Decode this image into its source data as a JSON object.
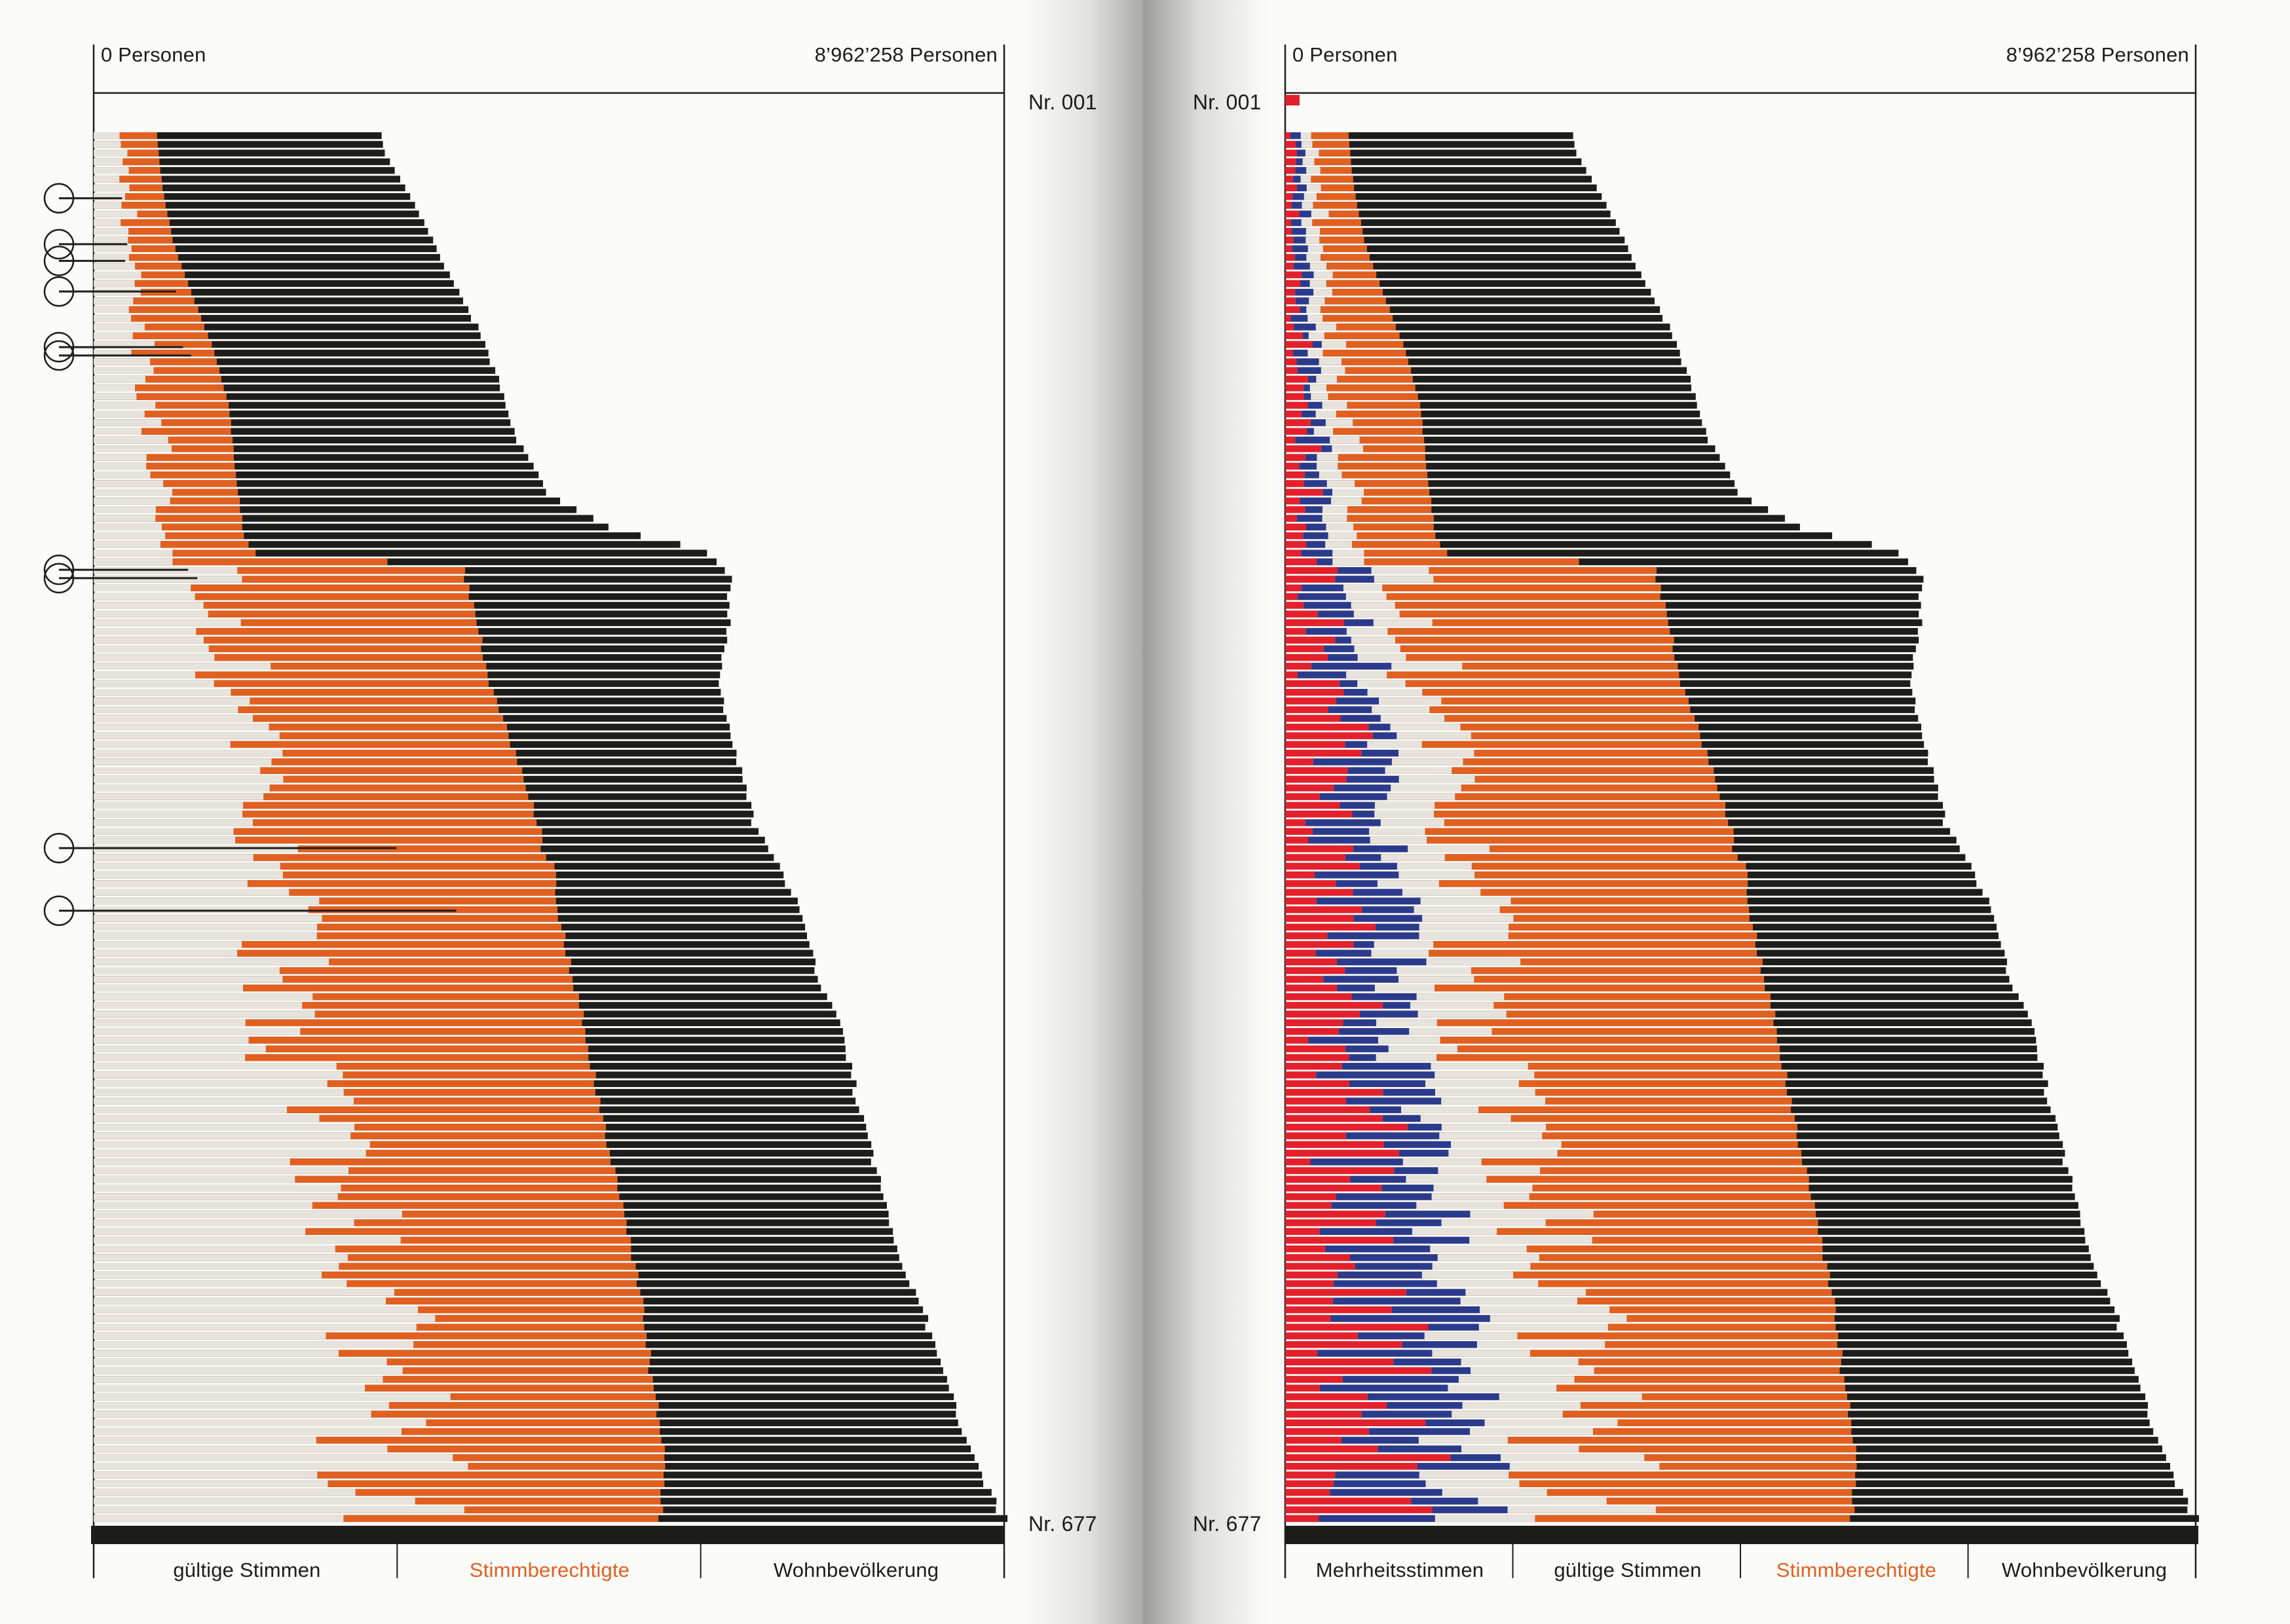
{
  "colors": {
    "valid": "#e6e3dd",
    "eligible": "#e2601f",
    "population": "#1d1d1b",
    "yes": "#e3202b",
    "no": "#2b3b8c",
    "paper": "#fbfbfa",
    "axis": "#1d1d1b"
  },
  "left": {
    "axis_min_label": "0 Personen",
    "axis_max_label": "8’962’258 Personen",
    "first_label": "Nr. 001",
    "last_label": "Nr. 677",
    "footer": [
      "gültige Stimmen",
      "Stimmberechtigte",
      "Wohnbevölkerung"
    ]
  },
  "right": {
    "axis_min_label": "0 Personen",
    "axis_max_label": "8’962’258 Personen",
    "first_label": "Nr. 001",
    "last_label": "Nr. 677",
    "footer": [
      "Mehrheitsstimmen",
      "gültige Stimmen",
      "Stimmberechtigte",
      "Wohnbevölkerung"
    ]
  },
  "chart_data": [
    {
      "type": "bar",
      "orientation": "horizontal",
      "x_range": [
        0,
        8962258
      ],
      "x_unit": "Personen",
      "record_range": [
        "Nr. 001",
        "Nr. 677"
      ],
      "series": [
        {
          "name": "gültige Stimmen",
          "color": "#e6e3dd"
        },
        {
          "name": "Stimmberechtigte",
          "color": "#e2601f"
        },
        {
          "name": "Wohnbevölkerung",
          "color": "#1d1d1b"
        }
      ],
      "population_profile": [
        [
          0.0,
          2846000
        ],
        [
          0.01,
          2840000
        ],
        [
          0.06,
          3230000
        ],
        [
          0.1,
          3490000
        ],
        [
          0.14,
          3785000
        ],
        [
          0.18,
          4000000
        ],
        [
          0.22,
          4170000
        ],
        [
          0.26,
          4480000
        ],
        [
          0.285,
          5120000
        ],
        [
          0.3,
          6030000
        ],
        [
          0.32,
          6260000
        ],
        [
          0.35,
          6250000
        ],
        [
          0.4,
          6150000
        ],
        [
          0.45,
          6330000
        ],
        [
          0.5,
          6510000
        ],
        [
          0.55,
          6900000
        ],
        [
          0.6,
          7090000
        ],
        [
          0.65,
          7380000
        ],
        [
          0.7,
          7520000
        ],
        [
          0.75,
          7710000
        ],
        [
          0.8,
          7890000
        ],
        [
          0.85,
          8160000
        ],
        [
          0.9,
          8380000
        ],
        [
          0.95,
          8640000
        ],
        [
          0.985,
          8850000
        ],
        [
          1.0,
          8962258
        ]
      ],
      "eligible_profile": [
        [
          0.0,
          622000
        ],
        [
          0.04,
          680000
        ],
        [
          0.08,
          793000
        ],
        [
          0.12,
          996000
        ],
        [
          0.16,
          1206000
        ],
        [
          0.2,
          1340000
        ],
        [
          0.24,
          1390000
        ],
        [
          0.29,
          1480000
        ],
        [
          0.305,
          1620000
        ],
        [
          0.31,
          3625000
        ],
        [
          0.35,
          3765000
        ],
        [
          0.4,
          3915000
        ],
        [
          0.45,
          4165000
        ],
        [
          0.5,
          4390000
        ],
        [
          0.52,
          4430000
        ],
        [
          0.525,
          4530000
        ],
        [
          0.56,
          4570000
        ],
        [
          0.6,
          4690000
        ],
        [
          0.65,
          4850000
        ],
        [
          0.7,
          4975000
        ],
        [
          0.75,
          5125000
        ],
        [
          0.8,
          5285000
        ],
        [
          0.85,
          5410000
        ],
        [
          0.9,
          5495000
        ],
        [
          0.95,
          5615000
        ],
        [
          1.0,
          5583000
        ]
      ],
      "valid_profile": [
        [
          0.0,
          290000
        ],
        [
          0.1,
          390000
        ],
        [
          0.2,
          600000
        ],
        [
          0.29,
          620000
        ],
        [
          0.32,
          1280000
        ],
        [
          0.4,
          1400000
        ],
        [
          0.45,
          1500000
        ],
        [
          0.5,
          1680000
        ],
        [
          0.55,
          1820000
        ],
        [
          0.6,
          1860000
        ],
        [
          0.65,
          2000000
        ],
        [
          0.7,
          2200000
        ],
        [
          0.75,
          2360000
        ],
        [
          0.8,
          2520000
        ],
        [
          0.85,
          2640000
        ],
        [
          0.9,
          2760000
        ],
        [
          0.95,
          2900000
        ],
        [
          1.0,
          3000000
        ]
      ],
      "markers": [
        {
          "record_fraction": 0.045,
          "value": 280000
        },
        {
          "record_fraction": 0.078,
          "value": 330000
        },
        {
          "record_fraction": 0.09,
          "value": 310000
        },
        {
          "record_fraction": 0.112,
          "value": 810000
        },
        {
          "record_fraction": 0.152,
          "value": 880000
        },
        {
          "record_fraction": 0.158,
          "value": 960000
        },
        {
          "record_fraction": 0.312,
          "value": 930000
        },
        {
          "record_fraction": 0.318,
          "value": 1020000
        },
        {
          "record_fraction": 0.512,
          "value": 2980000
        },
        {
          "record_fraction": 0.557,
          "value": 3570000
        }
      ]
    },
    {
      "type": "bar",
      "orientation": "horizontal",
      "x_range": [
        0,
        8962258
      ],
      "x_unit": "Personen",
      "record_range": [
        "Nr. 001",
        "Nr. 677"
      ],
      "series": [
        {
          "name": "Mehrheitsstimmen",
          "colors": [
            "#e3202b",
            "#2b3b8c"
          ]
        },
        {
          "name": "gültige Stimmen",
          "color": "#e6e3dd"
        },
        {
          "name": "Stimmberechtigte",
          "color": "#e2601f"
        },
        {
          "name": "Wohnbevölkerung",
          "color": "#1d1d1b"
        }
      ],
      "majority_share_of_valid": 0.6
    }
  ]
}
